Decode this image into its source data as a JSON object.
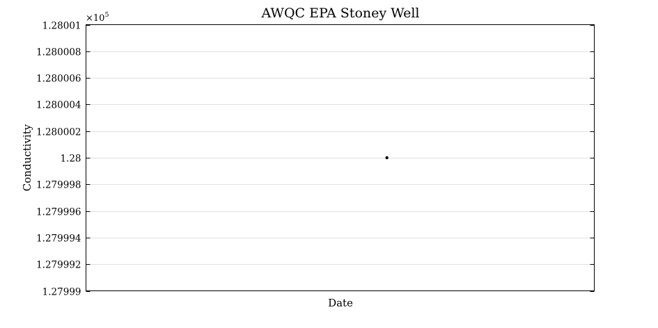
{
  "chart_data": {
    "type": "scatter",
    "title": "AWQC EPA Stoney Well",
    "xlabel": "Date",
    "ylabel": "Conductivity",
    "y_multiplier": {
      "base": "×10",
      "exponent": "5"
    },
    "ylim": [
      1.27999,
      1.28001
    ],
    "y_ticks": [
      1.27999,
      1.279992,
      1.279994,
      1.279996,
      1.279998,
      1.28,
      1.280002,
      1.280004,
      1.280006,
      1.280008,
      1.28001
    ],
    "y_tick_labels": [
      "1.27999",
      "1.279992",
      "1.279994",
      "1.279996",
      "1.279998",
      "1.28",
      "1.280002",
      "1.280004",
      "1.280006",
      "1.280008",
      "1.28001"
    ],
    "xlim": [
      0,
      1
    ],
    "x_ticks": [],
    "grid": true,
    "marker_color": "#000000",
    "series": [
      {
        "points": [
          {
            "x": 0.592,
            "y": 1.28
          }
        ]
      }
    ]
  }
}
